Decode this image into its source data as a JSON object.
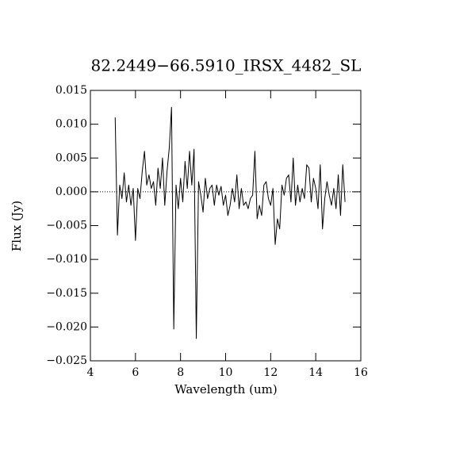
{
  "chart_data": {
    "type": "line",
    "title": "82.2449−66.5910_IRSX_4482_SL",
    "x_label": "Wavelength (um)",
    "y_label": "Flux (Jy)",
    "x": [
      5.1,
      5.2,
      5.3,
      5.4,
      5.5,
      5.6,
      5.7,
      5.8,
      5.9,
      6.0,
      6.1,
      6.2,
      6.3,
      6.4,
      6.5,
      6.6,
      6.7,
      6.8,
      6.9,
      7.0,
      7.1,
      7.2,
      7.3,
      7.4,
      7.5,
      7.6,
      7.7,
      7.8,
      7.9,
      8.0,
      8.1,
      8.2,
      8.3,
      8.4,
      8.5,
      8.6,
      8.7,
      8.8,
      8.9,
      9.0,
      9.1,
      9.2,
      9.3,
      9.4,
      9.5,
      9.6,
      9.7,
      9.8,
      9.9,
      10.0,
      10.1,
      10.2,
      10.3,
      10.4,
      10.5,
      10.6,
      10.7,
      10.8,
      10.9,
      11.0,
      11.1,
      11.2,
      11.3,
      11.4,
      11.5,
      11.6,
      11.7,
      11.8,
      11.9,
      12.0,
      12.1,
      12.2,
      12.3,
      12.4,
      12.5,
      12.6,
      12.7,
      12.8,
      12.9,
      13.0,
      13.1,
      13.2,
      13.3,
      13.4,
      13.5,
      13.6,
      13.7,
      13.8,
      13.9,
      14.0,
      14.1,
      14.2,
      14.3,
      14.4,
      14.5,
      14.6,
      14.7,
      14.8,
      14.9,
      15.0,
      15.1,
      15.2,
      15.3
    ],
    "series": [
      {
        "color": "#000000",
        "values": [
          0.011,
          -0.0064,
          0.001,
          -0.001,
          0.0028,
          -0.0015,
          0.001,
          -0.002,
          0.0005,
          -0.0072,
          0.0005,
          -0.001,
          0.003,
          0.006,
          0.001,
          0.0025,
          0.0005,
          0.0015,
          -0.002,
          0.0035,
          0.0005,
          0.005,
          -0.002,
          0.003,
          0.0065,
          0.0125,
          -0.0203,
          0.001,
          -0.0025,
          0.002,
          -0.0015,
          0.0045,
          0.0005,
          0.006,
          0.001,
          0.0063,
          -0.0217,
          0.0015,
          -0.0005,
          -0.003,
          0.002,
          -0.001,
          0.0005,
          0.001,
          -0.002,
          0.001,
          -0.0005,
          0.0008,
          -0.002,
          -0.0005,
          -0.0035,
          -0.002,
          0.0005,
          -0.0015,
          0.0025,
          -0.0025,
          0.0005,
          -0.002,
          -0.0015,
          -0.0025,
          -0.001,
          -0.0005,
          0.006,
          -0.004,
          -0.002,
          -0.0035,
          0.001,
          0.0015,
          -0.001,
          -0.002,
          0.0005,
          -0.0078,
          -0.004,
          -0.0055,
          0.001,
          -0.0005,
          0.002,
          0.0025,
          -0.0015,
          0.005,
          -0.002,
          0.001,
          -0.0015,
          0.0005,
          -0.001,
          0.004,
          0.0035,
          -0.0015,
          0.002,
          0.0005,
          -0.0025,
          0.004,
          -0.0055,
          -0.001,
          0.0015,
          -0.0005,
          -0.002,
          0.0005,
          -0.0025,
          0.0025,
          -0.0035,
          0.004,
          -0.0015
        ]
      }
    ],
    "xlim": [
      4,
      16
    ],
    "xticks": [
      4,
      6,
      8,
      10,
      12,
      14,
      16
    ],
    "ylim": [
      -0.025,
      0.015
    ],
    "yticks": [
      {
        "value": -0.025,
        "label": "−0.025"
      },
      {
        "value": -0.02,
        "label": "−0.020"
      },
      {
        "value": -0.015,
        "label": "−0.015"
      },
      {
        "value": -0.01,
        "label": "−0.010"
      },
      {
        "value": -0.005,
        "label": "−0.005"
      },
      {
        "value": 0,
        "label": "0.000"
      },
      {
        "value": 0.005,
        "label": "0.005"
      },
      {
        "value": 0.01,
        "label": "0.010"
      },
      {
        "value": 0.015,
        "label": "0.015"
      }
    ],
    "zero_line": true
  }
}
